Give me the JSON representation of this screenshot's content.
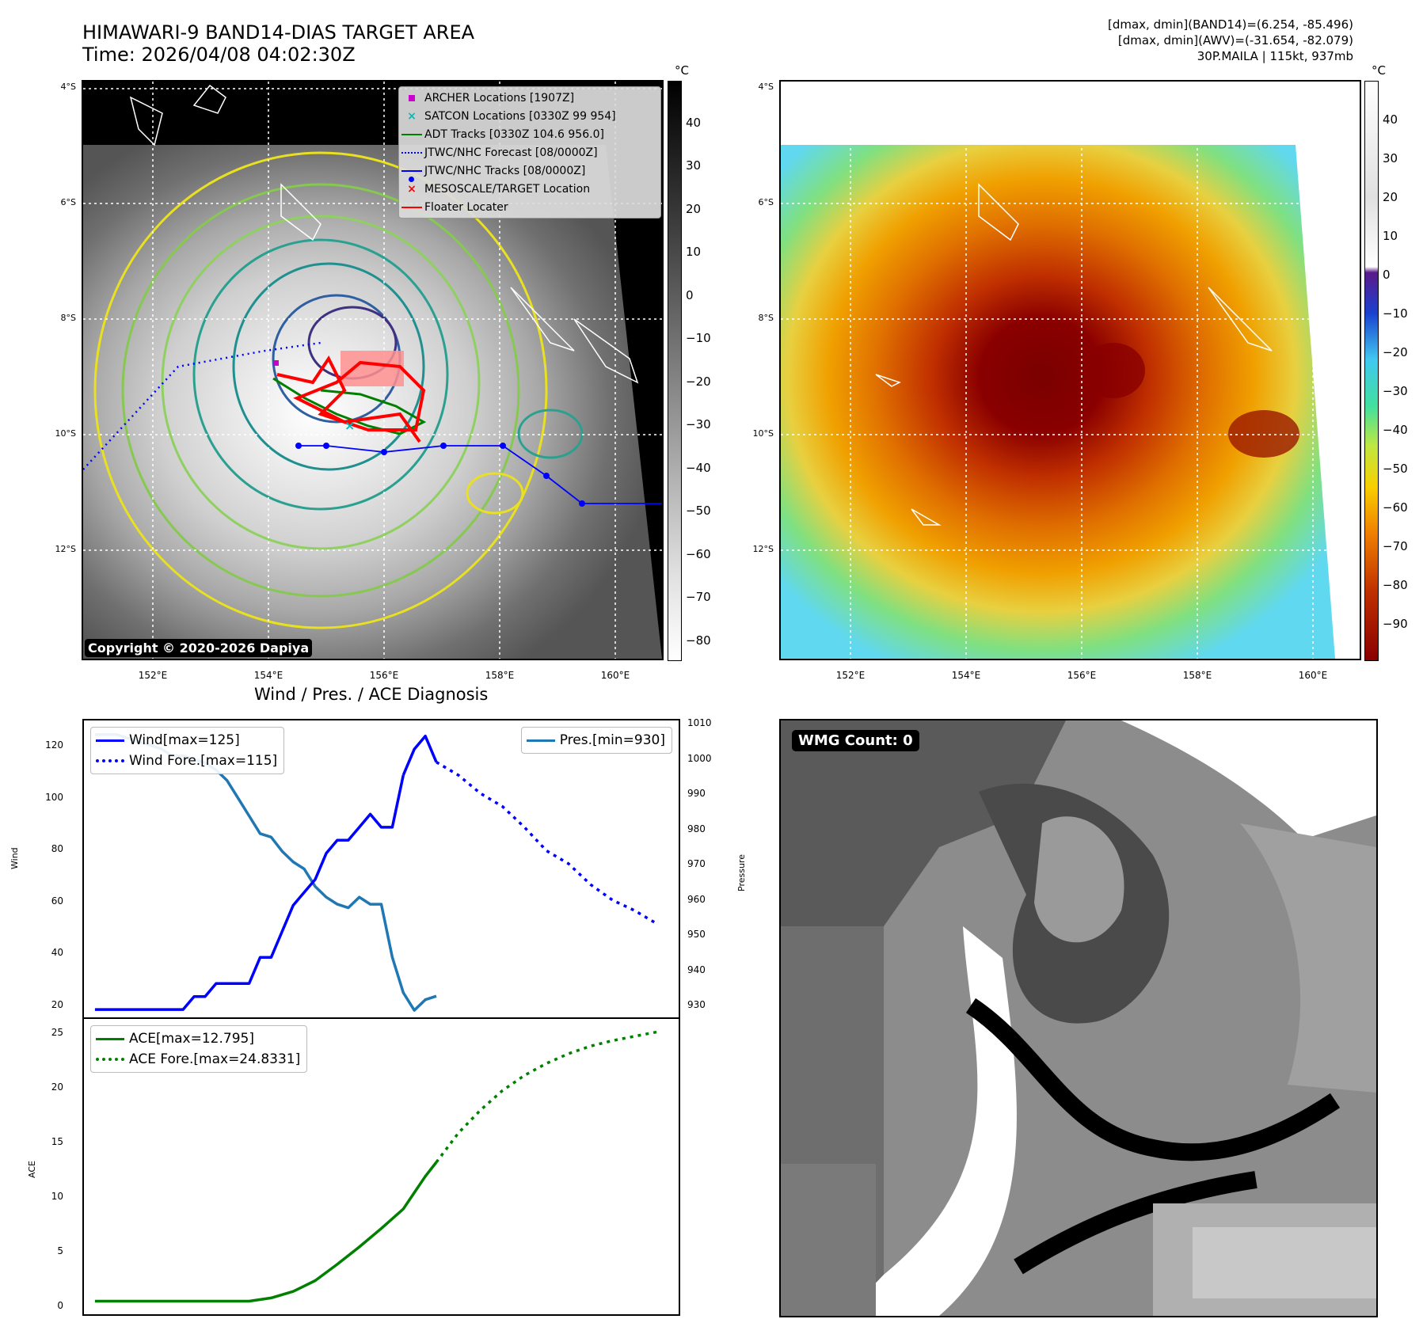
{
  "header": {
    "title_line1": "HIMAWARI-9 BAND14-DIAS TARGET AREA",
    "title_line2": "Time: 2026/04/08 04:02:30Z",
    "info_line1": "[dmax, dmin](BAND14)=(6.254, -85.496)",
    "info_line2": "[dmax, dmin](AWV)=(-31.654, -82.079)",
    "info_line3": "30P.MAILA | 115kt, 937mb"
  },
  "colors": {
    "wind": "#0000ff",
    "pressure": "#1f77b4",
    "ace": "#008000",
    "archer": "#cc00cc",
    "satcon": "#00bbbb",
    "adt": "#008000",
    "forecast": "#0000ff",
    "tracks": "#0000ff",
    "target": "#ff0000"
  },
  "map_axes": {
    "lat_labels": [
      "4°S",
      "6°S",
      "8°S",
      "10°S",
      "12°S"
    ],
    "lon_labels": [
      "152°E",
      "154°E",
      "156°E",
      "158°E",
      "160°E"
    ]
  },
  "ir_panel": {
    "unit": "°C",
    "colorbar_ticks": [
      "40",
      "30",
      "20",
      "10",
      "0",
      "−10",
      "−20",
      "−30",
      "−40",
      "−50",
      "−60",
      "−70",
      "−80"
    ],
    "copyright": "Copyright © 2020-2026 Dapiya",
    "legend": [
      {
        "label": "ARCHER Locations [1907Z]",
        "symbol": "square"
      },
      {
        "label": "SATCON Locations [0330Z 99 954]",
        "symbol": "x"
      },
      {
        "label": "ADT Tracks [0330Z 104.6 956.0]",
        "symbol": "line"
      },
      {
        "label": "JTWC/NHC Forecast [08/0000Z]",
        "symbol": "dotted"
      },
      {
        "label": "JTWC/NHC Tracks [08/0000Z]",
        "symbol": "line-dot"
      },
      {
        "label": "MESOSCALE/TARGET Location",
        "symbol": "x"
      },
      {
        "label": "Floater Locater",
        "symbol": "line"
      }
    ]
  },
  "awv_panel": {
    "unit": "°C",
    "colorbar_ticks": [
      "40",
      "30",
      "20",
      "10",
      "0",
      "−10",
      "−20",
      "−30",
      "−40",
      "−50",
      "−60",
      "−70",
      "−80",
      "−90"
    ]
  },
  "wmg_panel": {
    "label": "WMG Count: 0"
  },
  "diagnosis": {
    "title": "Wind / Pres. / ACE Diagnosis",
    "wind_ylabel": "Wind",
    "pressure_ylabel": "Pressure",
    "ace_ylabel": "ACE",
    "wind_ticks": [
      "120",
      "100",
      "80",
      "60",
      "40",
      "20"
    ],
    "pressure_ticks": [
      "1010",
      "1000",
      "990",
      "980",
      "970",
      "960",
      "950",
      "940",
      "930"
    ],
    "ace_ticks": [
      "25",
      "20",
      "15",
      "10",
      "5",
      "0"
    ],
    "wind_legend": [
      "Wind[max=125]",
      "Wind Fore.[max=115]"
    ],
    "pressure_legend": "Pres.[min=930]",
    "ace_legend": [
      "ACE[max=12.795]",
      "ACE Fore.[max=24.8331]"
    ]
  },
  "chart_data": [
    {
      "type": "line",
      "title": "Wind / Pres. / ACE Diagnosis",
      "ylabel": "Wind",
      "ylim": [
        17,
        131
      ],
      "xlim": [
        -1,
        53
      ],
      "series": [
        {
          "name": "Wind[max=125]",
          "style": "solid",
          "x": [
            0,
            1,
            2,
            3,
            4,
            5,
            6,
            7,
            8,
            9,
            10,
            11,
            12,
            13,
            14,
            15,
            16,
            17,
            18,
            19,
            20,
            21,
            22,
            23,
            24,
            25,
            26,
            27,
            28
          ],
          "values": [
            20,
            20,
            20,
            20,
            20,
            20,
            20,
            20,
            20,
            25,
            25,
            30,
            30,
            30,
            30,
            40,
            40,
            50,
            60,
            65,
            70,
            80,
            85,
            85,
            90,
            95,
            90,
            90,
            110
          ]
        },
        {
          "name": "Wind[max=125] (peak)",
          "style": "solid",
          "x": [
            28,
            29,
            30,
            31
          ],
          "values": [
            110,
            120,
            125,
            115
          ]
        },
        {
          "name": "Wind Fore.[max=115]",
          "style": "dotted",
          "x": [
            31,
            33,
            35,
            37,
            39,
            41,
            43,
            45,
            47,
            49,
            51
          ],
          "values": [
            115,
            110,
            103,
            98,
            90,
            81,
            76,
            68,
            62,
            58,
            53
          ]
        }
      ]
    },
    {
      "type": "line",
      "ylabel": "Pressure",
      "ylim": [
        928,
        1012
      ],
      "series": [
        {
          "name": "Pres.[min=930]",
          "style": "solid",
          "x": [
            0,
            1,
            2,
            3,
            4,
            5,
            6,
            7,
            8,
            9,
            10,
            11,
            12,
            13,
            14,
            15,
            16,
            17,
            18,
            19,
            20,
            21,
            22,
            23,
            24,
            25,
            26,
            27,
            28,
            29,
            30,
            31
          ],
          "values": [
            1008,
            1008,
            1008,
            1007,
            1006,
            1005,
            1004,
            1002,
            1002,
            1001,
            1000,
            998,
            995,
            990,
            985,
            980,
            979,
            975,
            972,
            970,
            965,
            962,
            960,
            959,
            962,
            960,
            960,
            945,
            935,
            930,
            933,
            934
          ]
        }
      ]
    },
    {
      "type": "line",
      "ylabel": "ACE",
      "ylim": [
        -1.2,
        26
      ],
      "series": [
        {
          "name": "ACE[max=12.795]",
          "style": "solid",
          "x": [
            0,
            2,
            4,
            6,
            8,
            10,
            12,
            14,
            16,
            18,
            20,
            22,
            24,
            26,
            28,
            29,
            30,
            31
          ],
          "values": [
            0,
            0,
            0,
            0,
            0,
            0,
            0,
            0,
            0.3,
            0.9,
            1.9,
            3.4,
            5.0,
            6.7,
            8.5,
            10,
            11.5,
            12.8
          ]
        },
        {
          "name": "ACE Fore.[max=24.8331]",
          "style": "dotted",
          "x": [
            31,
            33,
            35,
            37,
            39,
            41,
            43,
            45,
            47,
            49,
            51
          ],
          "values": [
            12.8,
            15.5,
            17.6,
            19.4,
            20.8,
            21.9,
            22.8,
            23.5,
            24.0,
            24.4,
            24.8
          ]
        }
      ]
    }
  ]
}
